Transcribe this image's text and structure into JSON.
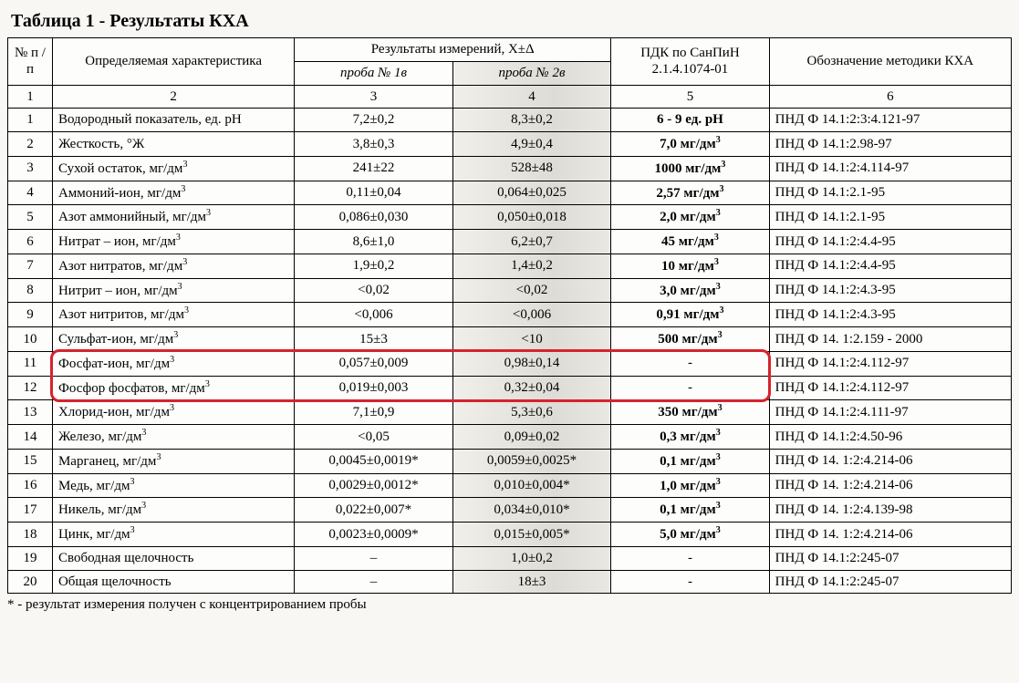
{
  "title": "Таблица 1 - Результаты КХА",
  "headers": {
    "num": "№\nп / п",
    "char": "Определяемая характеристика",
    "res_group": "Результаты измерений, X±Δ",
    "p1": "проба № 1в",
    "p2": "проба № 2в",
    "pdk": "ПДК по СанПиН 2.1.4.1074-01",
    "meth": "Обозначение методики КХА"
  },
  "colnums": [
    "1",
    "2",
    "3",
    "4",
    "5",
    "6"
  ],
  "unit_html": {
    "mgdm3": "мг/дм<sup>3</sup>",
    "gradZh": "°Ж",
    "pH": "ед. pH"
  },
  "rows": [
    {
      "n": "1",
      "char": "Водородный показатель, ед. pH",
      "p1": "7,2±0,2",
      "p2": "8,3±0,2",
      "pdk": "6 - 9 ед. pH",
      "pdk_bold": true,
      "meth": "ПНД Ф 14.1:2:3:4.121-97"
    },
    {
      "n": "2",
      "char": "Жесткость, °Ж",
      "p1": "3,8±0,3",
      "p2": "4,9±0,4",
      "pdk": "7,0 мг/дм³",
      "pdk_bold": true,
      "meth": "ПНД Ф 14.1:2.98-97"
    },
    {
      "n": "3",
      "char": "Сухой остаток, мг/дм³",
      "p1": "241±22",
      "p2": "528±48",
      "pdk": "1000 мг/дм³",
      "pdk_bold": true,
      "meth": "ПНД Ф 14.1:2:4.114-97"
    },
    {
      "n": "4",
      "char": "Аммоний-ион, мг/дм³",
      "p1": "0,11±0,04",
      "p2": "0,064±0,025",
      "pdk": "2,57 мг/дм³",
      "pdk_bold": true,
      "meth": "ПНД Ф 14.1:2.1-95"
    },
    {
      "n": "5",
      "char": "Азот аммонийный, мг/дм³",
      "p1": "0,086±0,030",
      "p2": "0,050±0,018",
      "pdk": "2,0 мг/дм³",
      "pdk_bold": true,
      "meth": "ПНД Ф 14.1:2.1-95"
    },
    {
      "n": "6",
      "char": "Нитрат – ион,  мг/дм³",
      "p1": "8,6±1,0",
      "p2": "6,2±0,7",
      "pdk": "45 мг/дм³",
      "pdk_bold": true,
      "meth": "ПНД Ф 14.1:2:4.4-95"
    },
    {
      "n": "7",
      "char": "Азот нитратов, мг/дм³",
      "p1": "1,9±0,2",
      "p2": "1,4±0,2",
      "pdk": "10 мг/дм³",
      "pdk_bold": true,
      "meth": "ПНД Ф 14.1:2:4.4-95"
    },
    {
      "n": "8",
      "char": "Нитрит – ион, мг/дм³",
      "p1": "<0,02",
      "p2": "<0,02",
      "pdk": "3,0 мг/дм³",
      "pdk_bold": true,
      "meth": "ПНД Ф 14.1:2:4.3-95"
    },
    {
      "n": "9",
      "char": "Азот нитритов, мг/дм³",
      "p1": "<0,006",
      "p2": "<0,006",
      "pdk": "0,91 мг/дм³",
      "pdk_bold": true,
      "meth": "ПНД Ф 14.1:2:4.3-95"
    },
    {
      "n": "10",
      "char": "Сульфат-ион, мг/дм³",
      "p1": "15±3",
      "p2": "<10",
      "pdk": "500 мг/дм³",
      "pdk_bold": true,
      "meth": "ПНД Ф 14. 1:2.159 - 2000"
    },
    {
      "n": "11",
      "char": "Фосфат-ион, мг/дм³",
      "p1": "0,057±0,009",
      "p2": "0,98±0,14",
      "pdk": "-",
      "pdk_bold": false,
      "meth": "ПНД Ф 14.1:2:4.112-97",
      "hi": true
    },
    {
      "n": "12",
      "char": "Фосфор фосфатов, мг/дм³",
      "p1": "0,019±0,003",
      "p2": "0,32±0,04",
      "pdk": "-",
      "pdk_bold": false,
      "meth": "ПНД Ф 14.1:2:4.112-97",
      "hi": true
    },
    {
      "n": "13",
      "char": "Хлорид-ион, мг/дм³",
      "p1": "7,1±0,9",
      "p2": "5,3±0,6",
      "pdk": "350 мг/дм³",
      "pdk_bold": true,
      "meth": "ПНД Ф 14.1:2:4.111-97"
    },
    {
      "n": "14",
      "char": "Железо, мг/дм³",
      "p1": "<0,05",
      "p2": "0,09±0,02",
      "pdk": "0,3 мг/дм³",
      "pdk_bold": true,
      "meth": "ПНД Ф 14.1:2:4.50-96"
    },
    {
      "n": "15",
      "char": "Марганец, мг/дм³",
      "p1": "0,0045±0,0019*",
      "p2": "0,0059±0,0025*",
      "pdk": "0,1 мг/дм³",
      "pdk_bold": true,
      "meth": "ПНД Ф 14. 1:2:4.214-06"
    },
    {
      "n": "16",
      "char": "Медь, мг/дм³",
      "p1": "0,0029±0,0012*",
      "p2": "0,010±0,004*",
      "pdk": "1,0 мг/дм³",
      "pdk_bold": true,
      "meth": "ПНД Ф 14. 1:2:4.214-06"
    },
    {
      "n": "17",
      "char": "Никель, мг/дм³",
      "p1": "0,022±0,007*",
      "p2": "0,034±0,010*",
      "pdk": "0,1 мг/дм³",
      "pdk_bold": true,
      "meth": "ПНД Ф 14. 1:2:4.139-98"
    },
    {
      "n": "18",
      "char": "Цинк, мг/дм³",
      "p1": "0,0023±0,0009*",
      "p2": "0,015±0,005*",
      "pdk": "5,0 мг/дм³",
      "pdk_bold": true,
      "meth": "ПНД Ф 14. 1:2:4.214-06"
    },
    {
      "n": "19",
      "char": "Свободная щелочность",
      "p1": "–",
      "p2": "1,0±0,2",
      "pdk": "-",
      "pdk_bold": false,
      "meth": "ПНД Ф 14.1:2:245-07"
    },
    {
      "n": "20",
      "char": "Общая щелочность",
      "p1": "–",
      "p2": "18±3",
      "pdk": "-",
      "pdk_bold": false,
      "meth": "ПНД Ф 14.1:2:245-07"
    }
  ],
  "footnote": "* - результат измерения получен с концентрированием пробы",
  "highlight_color": "#d6232d"
}
